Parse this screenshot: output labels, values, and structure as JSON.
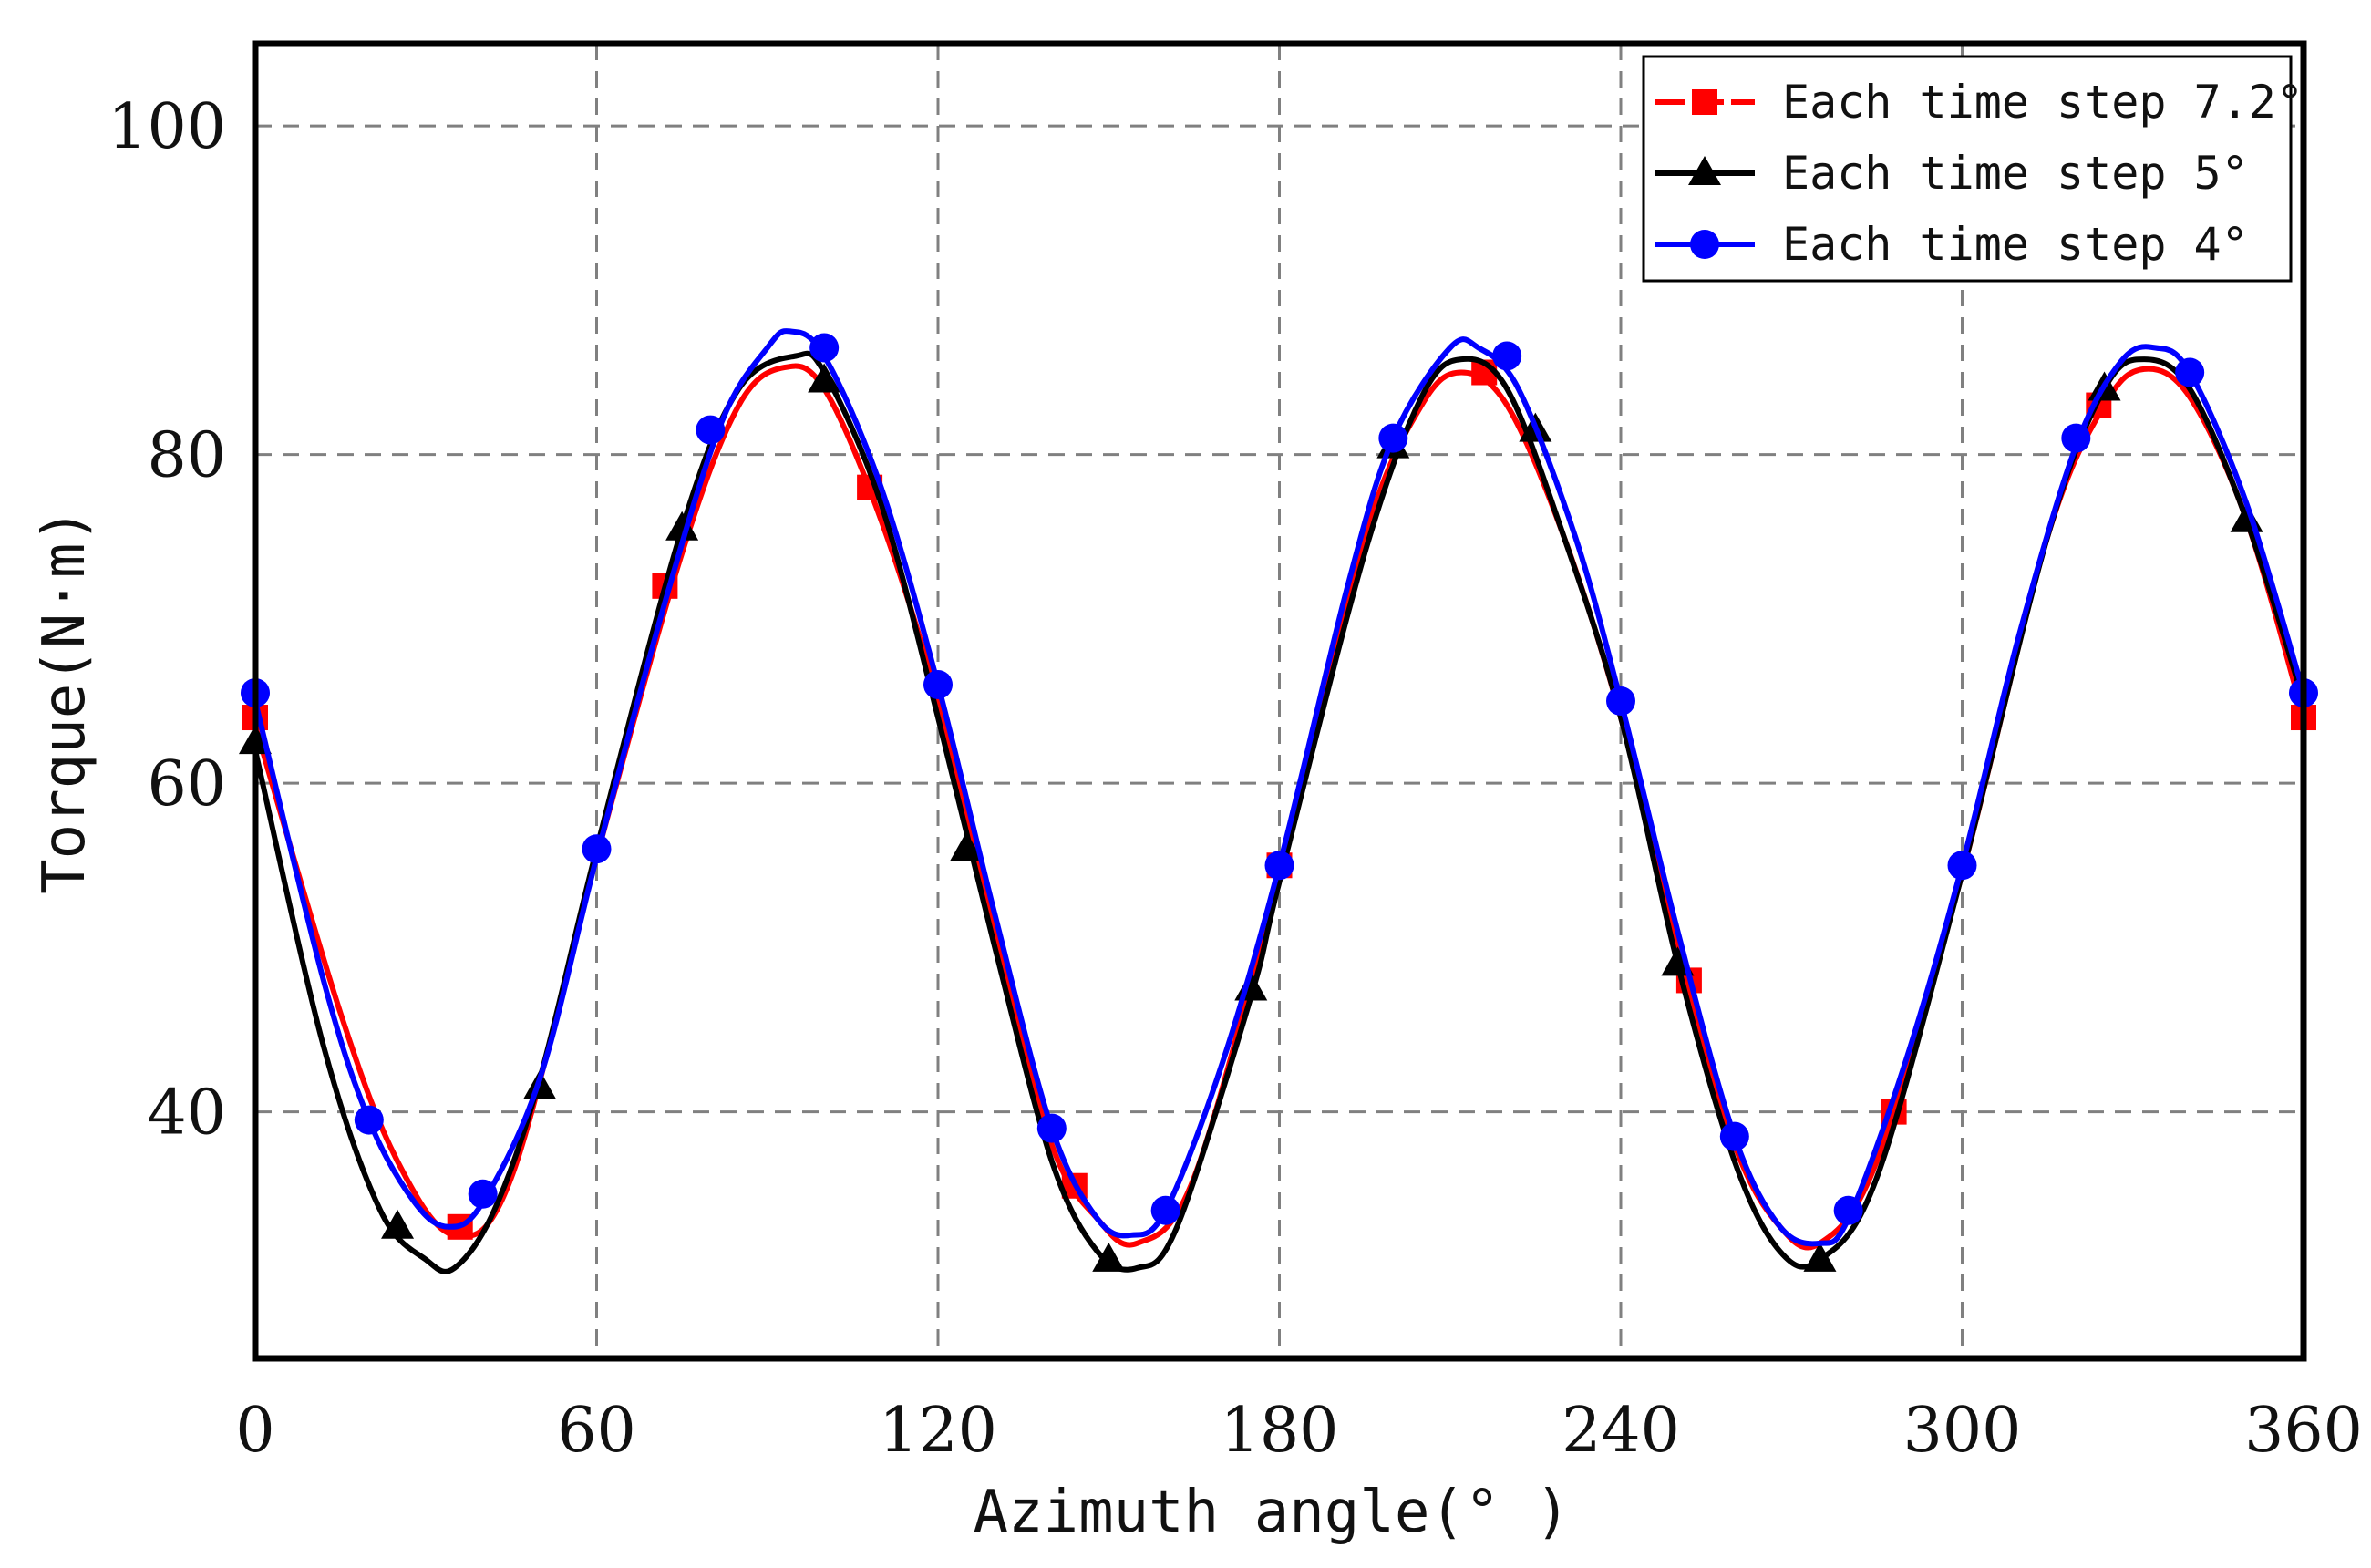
{
  "chart_data": {
    "type": "line",
    "title": "",
    "xlabel": "Azimuth angle(° )",
    "ylabel": "Torque(N·m)",
    "xlim": [
      0,
      360
    ],
    "ylim": [
      25,
      105
    ],
    "xticks": [
      "0",
      "60",
      "120",
      "180",
      "240",
      "300",
      "360"
    ],
    "yticks": [
      "40",
      "60",
      "80",
      "100"
    ],
    "grid": true,
    "legend_position": "top-right",
    "series": [
      {
        "name": "Each time step 7.2°",
        "color": "#ff0000",
        "marker": "square",
        "curve": [
          [
            0,
            63.5
          ],
          [
            15,
            46
          ],
          [
            25,
            37
          ],
          [
            35,
            32.5
          ],
          [
            45,
            36
          ],
          [
            60,
            55.5
          ],
          [
            75,
            74
          ],
          [
            85,
            83
          ],
          [
            93,
            85.3
          ],
          [
            100,
            84
          ],
          [
            110,
            76
          ],
          [
            120,
            65
          ],
          [
            130,
            51
          ],
          [
            140,
            38
          ],
          [
            148,
            33.5
          ],
          [
            155,
            32
          ],
          [
            165,
            36
          ],
          [
            180,
            54.5
          ],
          [
            195,
            75
          ],
          [
            205,
            83
          ],
          [
            212,
            85
          ],
          [
            220,
            83
          ],
          [
            230,
            75
          ],
          [
            240,
            64
          ],
          [
            250,
            50
          ],
          [
            260,
            38
          ],
          [
            268,
            33
          ],
          [
            275,
            32
          ],
          [
            285,
            37
          ],
          [
            300,
            54.5
          ],
          [
            315,
            75
          ],
          [
            325,
            83
          ],
          [
            332,
            85.2
          ],
          [
            340,
            83.5
          ],
          [
            350,
            76
          ],
          [
            360,
            64
          ]
        ],
        "markers": [
          [
            0,
            64
          ],
          [
            36,
            33
          ],
          [
            72,
            72
          ],
          [
            108,
            78
          ],
          [
            144,
            35.5
          ],
          [
            180,
            55
          ],
          [
            216,
            85
          ],
          [
            252,
            48
          ],
          [
            288,
            40
          ],
          [
            324,
            83
          ],
          [
            360,
            64
          ]
        ]
      },
      {
        "name": "Each time step 5°",
        "color": "#000000",
        "marker": "triangle",
        "curve": [
          [
            0,
            62
          ],
          [
            12,
            44
          ],
          [
            22,
            34
          ],
          [
            30,
            31
          ],
          [
            35,
            30.5
          ],
          [
            42,
            34
          ],
          [
            50,
            42
          ],
          [
            60,
            56
          ],
          [
            75,
            75.5
          ],
          [
            85,
            84
          ],
          [
            95,
            86
          ],
          [
            100,
            85
          ],
          [
            110,
            77
          ],
          [
            120,
            64
          ],
          [
            130,
            50
          ],
          [
            140,
            37
          ],
          [
            148,
            31.5
          ],
          [
            155,
            30.5
          ],
          [
            162,
            33
          ],
          [
            175,
            47
          ],
          [
            180,
            54
          ],
          [
            195,
            74
          ],
          [
            205,
            83.5
          ],
          [
            212,
            85.8
          ],
          [
            220,
            84
          ],
          [
            230,
            75
          ],
          [
            240,
            64
          ],
          [
            250,
            49
          ],
          [
            260,
            37
          ],
          [
            268,
            31.5
          ],
          [
            275,
            31
          ],
          [
            285,
            36
          ],
          [
            300,
            54.5
          ],
          [
            315,
            75
          ],
          [
            325,
            84
          ],
          [
            332,
            85.8
          ],
          [
            340,
            84
          ],
          [
            350,
            76
          ],
          [
            360,
            65
          ]
        ],
        "markers": [
          [
            0,
            62.5
          ],
          [
            25,
            33
          ],
          [
            50,
            41.5
          ],
          [
            75,
            75.5
          ],
          [
            100,
            84.5
          ],
          [
            125,
            56
          ],
          [
            150,
            31
          ],
          [
            175,
            47.5
          ],
          [
            200,
            80.5
          ],
          [
            225,
            81.5
          ],
          [
            250,
            49
          ],
          [
            275,
            31
          ],
          [
            325,
            84
          ],
          [
            350,
            76
          ]
        ]
      },
      {
        "name": "Each time step 4°",
        "color": "#0000ff",
        "marker": "circle",
        "curve": [
          [
            0,
            65
          ],
          [
            12,
            48
          ],
          [
            20,
            39.5
          ],
          [
            28,
            34.5
          ],
          [
            34,
            33
          ],
          [
            40,
            34.5
          ],
          [
            50,
            42
          ],
          [
            60,
            55.5
          ],
          [
            72,
            71
          ],
          [
            82,
            82
          ],
          [
            90,
            86.5
          ],
          [
            94,
            87.5
          ],
          [
            100,
            86
          ],
          [
            110,
            78
          ],
          [
            120,
            66
          ],
          [
            130,
            52
          ],
          [
            140,
            39
          ],
          [
            148,
            33.5
          ],
          [
            154,
            32.5
          ],
          [
            160,
            34
          ],
          [
            170,
            43
          ],
          [
            180,
            55
          ],
          [
            192,
            72
          ],
          [
            200,
            81
          ],
          [
            210,
            86.5
          ],
          [
            215,
            86.5
          ],
          [
            222,
            84
          ],
          [
            232,
            75
          ],
          [
            240,
            65
          ],
          [
            250,
            51
          ],
          [
            260,
            38.5
          ],
          [
            268,
            33
          ],
          [
            275,
            32
          ],
          [
            280,
            33.5
          ],
          [
            290,
            43
          ],
          [
            300,
            55
          ],
          [
            310,
            69
          ],
          [
            320,
            80.5
          ],
          [
            328,
            85.7
          ],
          [
            334,
            86.5
          ],
          [
            340,
            85
          ],
          [
            350,
            77
          ],
          [
            360,
            65.5
          ]
        ],
        "markers": [
          [
            0,
            65.5
          ],
          [
            20,
            39.5
          ],
          [
            40,
            35
          ],
          [
            60,
            56
          ],
          [
            80,
            81.5
          ],
          [
            100,
            86.5
          ],
          [
            120,
            66
          ],
          [
            140,
            39
          ],
          [
            160,
            34
          ],
          [
            180,
            55
          ],
          [
            200,
            81
          ],
          [
            220,
            86
          ],
          [
            240,
            65
          ],
          [
            260,
            38.5
          ],
          [
            280,
            34
          ],
          [
            300,
            55
          ],
          [
            320,
            81
          ],
          [
            340,
            85
          ],
          [
            360,
            65.5
          ]
        ]
      }
    ]
  }
}
